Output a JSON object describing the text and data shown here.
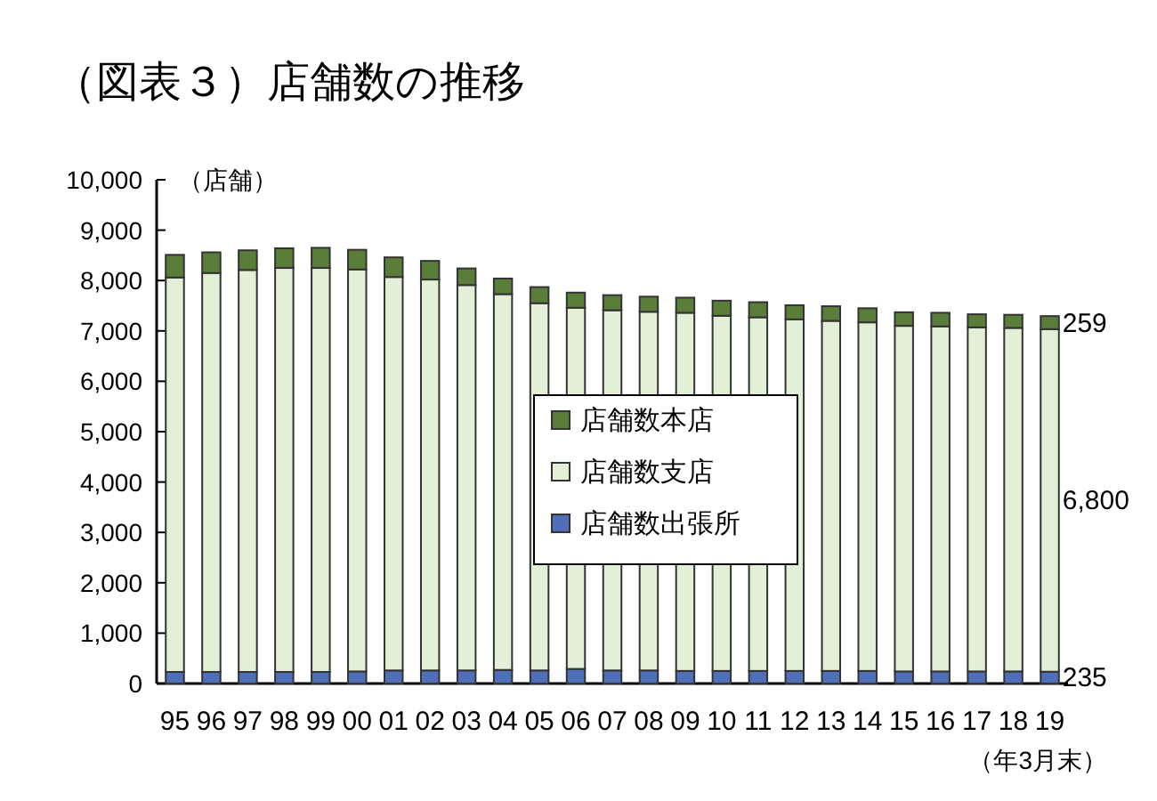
{
  "chart_data": {
    "type": "bar",
    "stacked": true,
    "title": "（図表３）店舗数の推移",
    "ylabel": "（店舗）",
    "xlabel": "（年3月末）",
    "categories": [
      "95",
      "96",
      "97",
      "98",
      "99",
      "00",
      "01",
      "02",
      "03",
      "04",
      "05",
      "06",
      "07",
      "08",
      "09",
      "10",
      "11",
      "12",
      "13",
      "14",
      "15",
      "16",
      "17",
      "18",
      "19"
    ],
    "series": [
      {
        "name": "店舗数出張所",
        "color": "#4f6fb8",
        "values": [
          230,
          230,
          230,
          230,
          230,
          240,
          260,
          260,
          260,
          270,
          260,
          290,
          260,
          260,
          250,
          250,
          250,
          250,
          250,
          250,
          240,
          240,
          240,
          240,
          235
        ]
      },
      {
        "name": "店舗数支店",
        "color": "#e4efd8",
        "values": [
          7830,
          7920,
          7980,
          8020,
          8020,
          7980,
          7810,
          7760,
          7650,
          7460,
          7290,
          7170,
          7150,
          7120,
          7110,
          7050,
          7020,
          6980,
          6950,
          6920,
          6860,
          6850,
          6830,
          6820,
          6800
        ]
      },
      {
        "name": "店舗数本店",
        "color": "#5a7d3a",
        "values": [
          450,
          410,
          390,
          390,
          400,
          390,
          390,
          370,
          330,
          310,
          320,
          300,
          300,
          300,
          300,
          300,
          300,
          280,
          290,
          280,
          270,
          270,
          260,
          260,
          259
        ]
      }
    ],
    "annotations": [
      {
        "text": "259",
        "x": "19",
        "y": 7160
      },
      {
        "text": "6,800",
        "x": "19",
        "y": 3640
      },
      {
        "text": "235",
        "x": "19",
        "y": 120
      }
    ],
    "ylim": [
      0,
      10000
    ],
    "yticks": [
      0,
      {
        "value": 1000,
        "label": "1,000"
      },
      {
        "value": 2000,
        "label": "2,000"
      },
      {
        "value": 3000,
        "label": "3,000"
      },
      {
        "value": 4000,
        "label": "4,000"
      },
      {
        "value": 5000,
        "label": "5,000"
      },
      {
        "value": 6000,
        "label": "6,000"
      },
      {
        "value": 7000,
        "label": "7,000"
      },
      {
        "value": 8000,
        "label": "8,000"
      },
      {
        "value": 9000,
        "label": "9,000"
      },
      {
        "value": 10000,
        "label": "10,000"
      }
    ],
    "legend": "center",
    "grid": false
  }
}
